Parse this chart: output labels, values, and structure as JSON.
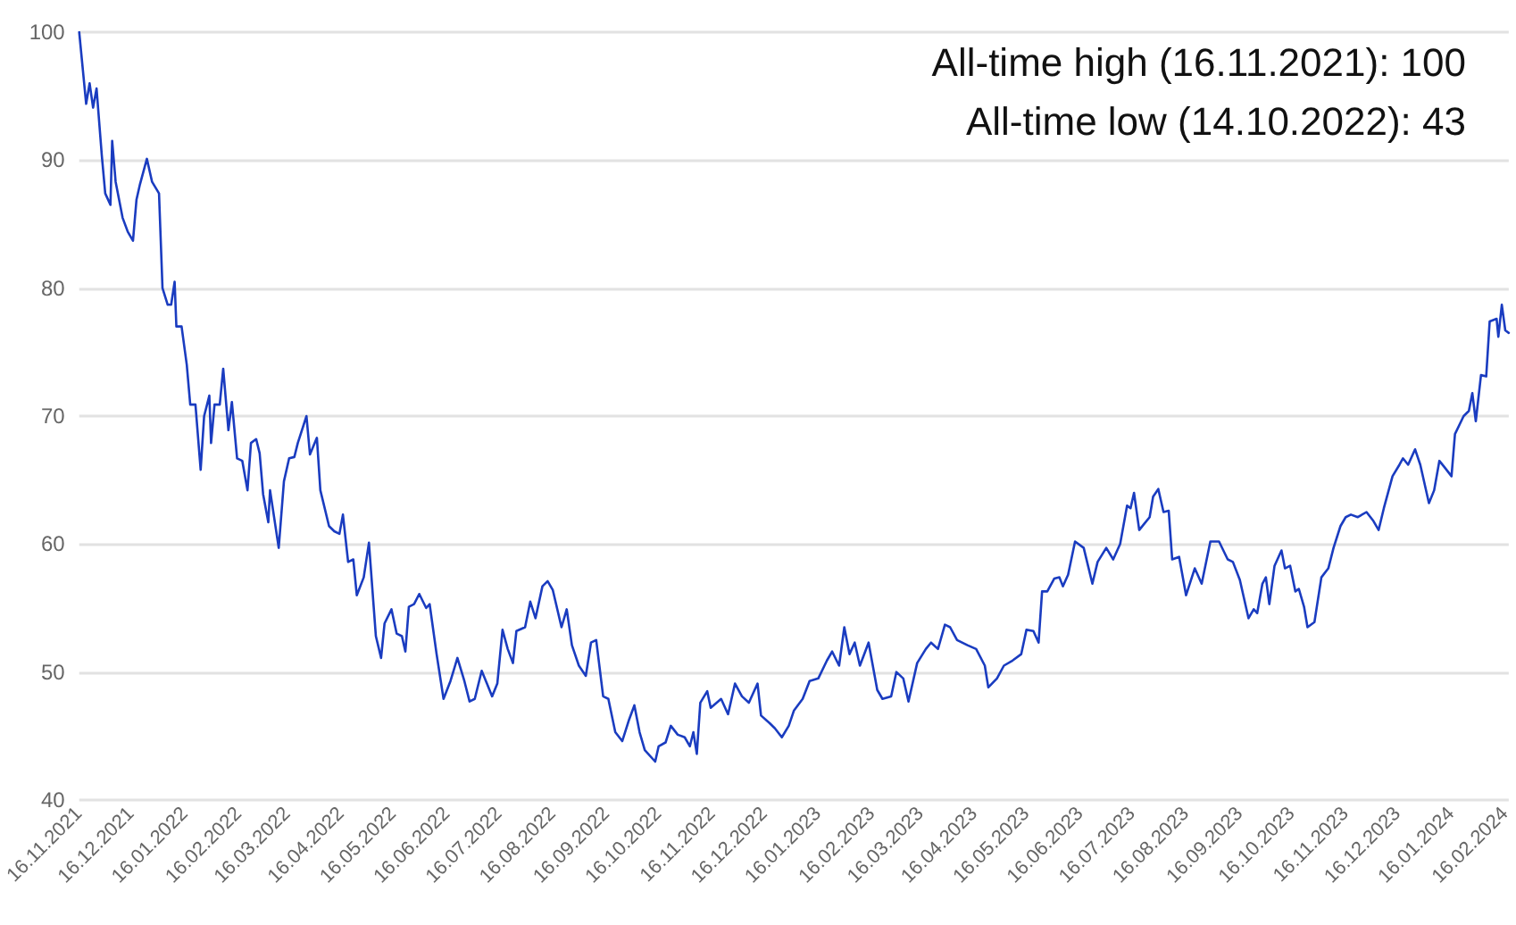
{
  "chart_data": {
    "type": "line",
    "annotations": [
      "All-time high (16.11.2021): 100",
      "All-time low (14.10.2022): 43"
    ],
    "x": [
      "2021-11-16",
      "2021-11-20",
      "2021-11-22",
      "2021-11-24",
      "2021-11-26",
      "2021-11-29",
      "2021-12-01",
      "2021-12-04",
      "2021-12-05",
      "2021-12-07",
      "2021-12-11",
      "2021-12-14",
      "2021-12-17",
      "2021-12-19",
      "2021-12-21",
      "2021-12-25",
      "2021-12-28",
      "2022-01-01",
      "2022-01-03",
      "2022-01-06",
      "2022-01-08",
      "2022-01-10",
      "2022-01-11",
      "2022-01-14",
      "2022-01-17",
      "2022-01-19",
      "2022-01-22",
      "2022-01-25",
      "2022-01-27",
      "2022-01-30",
      "2022-01-31",
      "2022-02-02",
      "2022-02-05",
      "2022-02-07",
      "2022-02-10",
      "2022-02-12",
      "2022-02-15",
      "2022-02-18",
      "2022-02-21",
      "2022-02-23",
      "2022-02-26",
      "2022-02-28",
      "2022-03-02",
      "2022-03-05",
      "2022-03-06",
      "2022-03-11",
      "2022-03-14",
      "2022-03-17",
      "2022-03-20",
      "2022-03-22",
      "2022-03-27",
      "2022-03-29",
      "2022-04-02",
      "2022-04-04",
      "2022-04-09",
      "2022-04-12",
      "2022-04-15",
      "2022-04-17",
      "2022-04-20",
      "2022-04-23",
      "2022-04-25",
      "2022-04-29",
      "2022-05-02",
      "2022-05-06",
      "2022-05-09",
      "2022-05-11",
      "2022-05-15",
      "2022-05-18",
      "2022-05-21",
      "2022-05-23",
      "2022-05-25",
      "2022-05-28",
      "2022-05-31",
      "2022-06-04",
      "2022-06-06",
      "2022-06-10",
      "2022-06-14",
      "2022-06-18",
      "2022-06-22",
      "2022-06-26",
      "2022-06-29",
      "2022-07-02",
      "2022-07-06",
      "2022-07-09",
      "2022-07-12",
      "2022-07-15",
      "2022-07-18",
      "2022-07-21",
      "2022-07-24",
      "2022-07-26",
      "2022-07-31",
      "2022-08-03",
      "2022-08-06",
      "2022-08-10",
      "2022-08-13",
      "2022-08-16",
      "2022-08-21",
      "2022-08-24",
      "2022-08-27",
      "2022-08-31",
      "2022-09-04",
      "2022-09-07",
      "2022-09-10",
      "2022-09-14",
      "2022-09-17",
      "2022-09-21",
      "2022-09-25",
      "2022-09-29",
      "2022-10-02",
      "2022-10-05",
      "2022-10-08",
      "2022-10-14",
      "2022-10-16",
      "2022-10-20",
      "2022-10-23",
      "2022-10-27",
      "2022-10-31",
      "2022-11-03",
      "2022-11-05",
      "2022-11-07",
      "2022-11-09",
      "2022-11-13",
      "2022-11-15",
      "2022-11-21",
      "2022-11-25",
      "2022-11-29",
      "2022-12-03",
      "2022-12-07",
      "2022-12-12",
      "2022-12-14",
      "2022-12-19",
      "2022-12-22",
      "2022-12-26",
      "2022-12-30",
      "2023-01-02",
      "2023-01-07",
      "2023-01-11",
      "2023-01-16",
      "2023-01-21",
      "2023-01-24",
      "2023-01-28",
      "2023-01-31",
      "2023-02-03",
      "2023-02-06",
      "2023-02-09",
      "2023-02-14",
      "2023-02-19",
      "2023-02-22",
      "2023-02-27",
      "2023-03-02",
      "2023-03-06",
      "2023-03-09",
      "2023-03-14",
      "2023-03-19",
      "2023-03-22",
      "2023-03-26",
      "2023-03-30",
      "2023-04-02",
      "2023-04-06",
      "2023-04-12",
      "2023-04-17",
      "2023-04-22",
      "2023-04-24",
      "2023-04-29",
      "2023-05-03",
      "2023-05-08",
      "2023-05-13",
      "2023-05-16",
      "2023-05-20",
      "2023-05-23",
      "2023-05-25",
      "2023-05-28",
      "2023-06-01",
      "2023-06-04",
      "2023-06-06",
      "2023-06-09",
      "2023-06-13",
      "2023-06-18",
      "2023-06-23",
      "2023-06-26",
      "2023-07-01",
      "2023-07-05",
      "2023-07-09",
      "2023-07-13",
      "2023-07-15",
      "2023-07-17",
      "2023-07-20",
      "2023-07-23",
      "2023-07-26",
      "2023-07-28",
      "2023-07-31",
      "2023-08-03",
      "2023-08-06",
      "2023-08-08",
      "2023-08-12",
      "2023-08-16",
      "2023-08-21",
      "2023-08-25",
      "2023-08-30",
      "2023-09-04",
      "2023-09-09",
      "2023-09-12",
      "2023-09-16",
      "2023-09-21",
      "2023-09-24",
      "2023-09-26",
      "2023-09-29",
      "2023-10-01",
      "2023-10-03",
      "2023-10-06",
      "2023-10-10",
      "2023-10-12",
      "2023-10-15",
      "2023-10-18",
      "2023-10-20",
      "2023-10-23",
      "2023-10-25",
      "2023-10-29",
      "2023-11-02",
      "2023-11-06",
      "2023-11-09",
      "2023-11-13",
      "2023-11-16",
      "2023-11-19",
      "2023-11-23",
      "2023-11-28",
      "2023-12-02",
      "2023-12-05",
      "2023-12-08",
      "2023-12-13",
      "2023-12-17",
      "2023-12-19",
      "2023-12-22",
      "2023-12-26",
      "2023-12-29",
      "2024-01-03",
      "2024-01-06",
      "2024-01-09",
      "2024-01-12",
      "2024-01-16",
      "2024-01-18",
      "2024-01-23",
      "2024-01-26",
      "2024-01-28",
      "2024-01-30",
      "2024-02-02",
      "2024-02-05",
      "2024-02-07",
      "2024-02-11",
      "2024-02-12",
      "2024-02-14",
      "2024-02-16",
      "2024-02-18"
    ],
    "series": [
      {
        "color": "#1a3cc0",
        "values": [
          100,
          94.4,
          96,
          94.1,
          95.6,
          90.4,
          87.4,
          86.5,
          91.5,
          88.3,
          85.5,
          84.4,
          83.7,
          86.9,
          88.1,
          90.1,
          88.3,
          87.4,
          80,
          78.7,
          78.7,
          80.5,
          77,
          77,
          74,
          70.9,
          70.9,
          65.8,
          70,
          71.6,
          67.9,
          70.9,
          70.9,
          73.7,
          68.9,
          71.1,
          66.7,
          66.5,
          64.2,
          67.9,
          68.2,
          67.1,
          63.9,
          61.7,
          64.2,
          59.7,
          64.9,
          66.7,
          66.8,
          67.9,
          70,
          67,
          68.3,
          64.2,
          61.4,
          61,
          60.8,
          62.3,
          58.6,
          58.8,
          56,
          57.4,
          60.1,
          52.8,
          51.1,
          53.8,
          54.9,
          53,
          52.8,
          51.6,
          55.1,
          55.3,
          56.1,
          55,
          55.3,
          51.4,
          47.9,
          49.3,
          51.1,
          49.3,
          47.7,
          47.9,
          50.1,
          49.1,
          48.1,
          49.1,
          53.3,
          51.8,
          50.7,
          53.2,
          53.5,
          55.5,
          54.2,
          56.7,
          57.1,
          56.4,
          53.5,
          54.9,
          52.1,
          50.5,
          49.7,
          52.3,
          52.5,
          48.1,
          47.9,
          45.3,
          44.6,
          46.3,
          47.4,
          45.3,
          43.9,
          43,
          44.2,
          44.5,
          45.8,
          45.1,
          44.9,
          44.2,
          45.3,
          43.6,
          47.6,
          48.5,
          47.2,
          47.9,
          46.7,
          49.1,
          48.1,
          47.6,
          49.1,
          46.6,
          46,
          45.6,
          44.9,
          45.8,
          47,
          47.9,
          49.3,
          49.5,
          50.9,
          51.6,
          50.5,
          53.5,
          51.4,
          52.3,
          50.5,
          52.3,
          48.6,
          47.9,
          48.1,
          50,
          49.5,
          47.7,
          50.7,
          51.8,
          52.3,
          51.8,
          53.7,
          53.5,
          52.5,
          52.1,
          51.8,
          50.5,
          48.8,
          49.5,
          50.5,
          50.9,
          51.4,
          53.3,
          53.2,
          52.3,
          56.3,
          56.3,
          57.3,
          57.4,
          56.7,
          57.6,
          60.2,
          59.7,
          56.9,
          58.6,
          59.7,
          58.8,
          60,
          63,
          62.8,
          64,
          61.1,
          61.6,
          62.1,
          63.7,
          64.3,
          62.5,
          62.6,
          58.8,
          59,
          56,
          58.1,
          56.9,
          60.2,
          60.2,
          58.8,
          58.6,
          57.2,
          54.2,
          54.9,
          54.6,
          56.9,
          57.4,
          55.3,
          58.3,
          59.5,
          58.1,
          58.3,
          56.3,
          56.5,
          55.1,
          53.5,
          53.9,
          57.4,
          58.1,
          59.7,
          61.4,
          62.1,
          62.3,
          62.1,
          62.5,
          61.8,
          61.1,
          62.8,
          65.3,
          66.2,
          66.7,
          66.2,
          67.4,
          66.2,
          63.2,
          64.2,
          66.5,
          66,
          65.3,
          68.6,
          70,
          70.4,
          71.8,
          69.6,
          73.2,
          73.1,
          77.4,
          77.6,
          76.2,
          78.7,
          76.7,
          76.5
        ]
      }
    ],
    "xlim": [
      "2021-11-16",
      "2024-02-18"
    ],
    "xticks": [
      {
        "value": "2021-11-16",
        "label": "16.11.2021"
      },
      {
        "value": "2021-12-16",
        "label": "16.12.2021"
      },
      {
        "value": "2022-01-16",
        "label": "16.01.2022"
      },
      {
        "value": "2022-02-16",
        "label": "16.02.2022"
      },
      {
        "value": "2022-03-16",
        "label": "16.03.2022"
      },
      {
        "value": "2022-04-16",
        "label": "16.04.2022"
      },
      {
        "value": "2022-05-16",
        "label": "16.05.2022"
      },
      {
        "value": "2022-06-16",
        "label": "16.06.2022"
      },
      {
        "value": "2022-07-16",
        "label": "16.07.2022"
      },
      {
        "value": "2022-08-16",
        "label": "16.08.2022"
      },
      {
        "value": "2022-09-16",
        "label": "16.09.2022"
      },
      {
        "value": "2022-10-16",
        "label": "16.10.2022"
      },
      {
        "value": "2022-11-16",
        "label": "16.11.2022"
      },
      {
        "value": "2022-12-16",
        "label": "16.12.2022"
      },
      {
        "value": "2023-01-16",
        "label": "16.01.2023"
      },
      {
        "value": "2023-02-16",
        "label": "16.02.2023"
      },
      {
        "value": "2023-03-16",
        "label": "16.03.2023"
      },
      {
        "value": "2023-04-16",
        "label": "16.04.2023"
      },
      {
        "value": "2023-05-16",
        "label": "16.05.2023"
      },
      {
        "value": "2023-06-16",
        "label": "16.06.2023"
      },
      {
        "value": "2023-07-16",
        "label": "16.07.2023"
      },
      {
        "value": "2023-08-16",
        "label": "16.08.2023"
      },
      {
        "value": "2023-09-16",
        "label": "16.09.2023"
      },
      {
        "value": "2023-10-16",
        "label": "16.10.2023"
      },
      {
        "value": "2023-11-16",
        "label": "16.11.2023"
      },
      {
        "value": "2023-12-16",
        "label": "16.12.2023"
      },
      {
        "value": "2024-01-16",
        "label": "16.01.2024"
      },
      {
        "value": "2024-02-16",
        "label": "16.02.2024"
      }
    ],
    "ylim": [
      40,
      100
    ],
    "yticks": [
      40,
      50,
      60,
      70,
      80,
      90,
      100
    ],
    "grid": "y",
    "line_style": "solid"
  }
}
